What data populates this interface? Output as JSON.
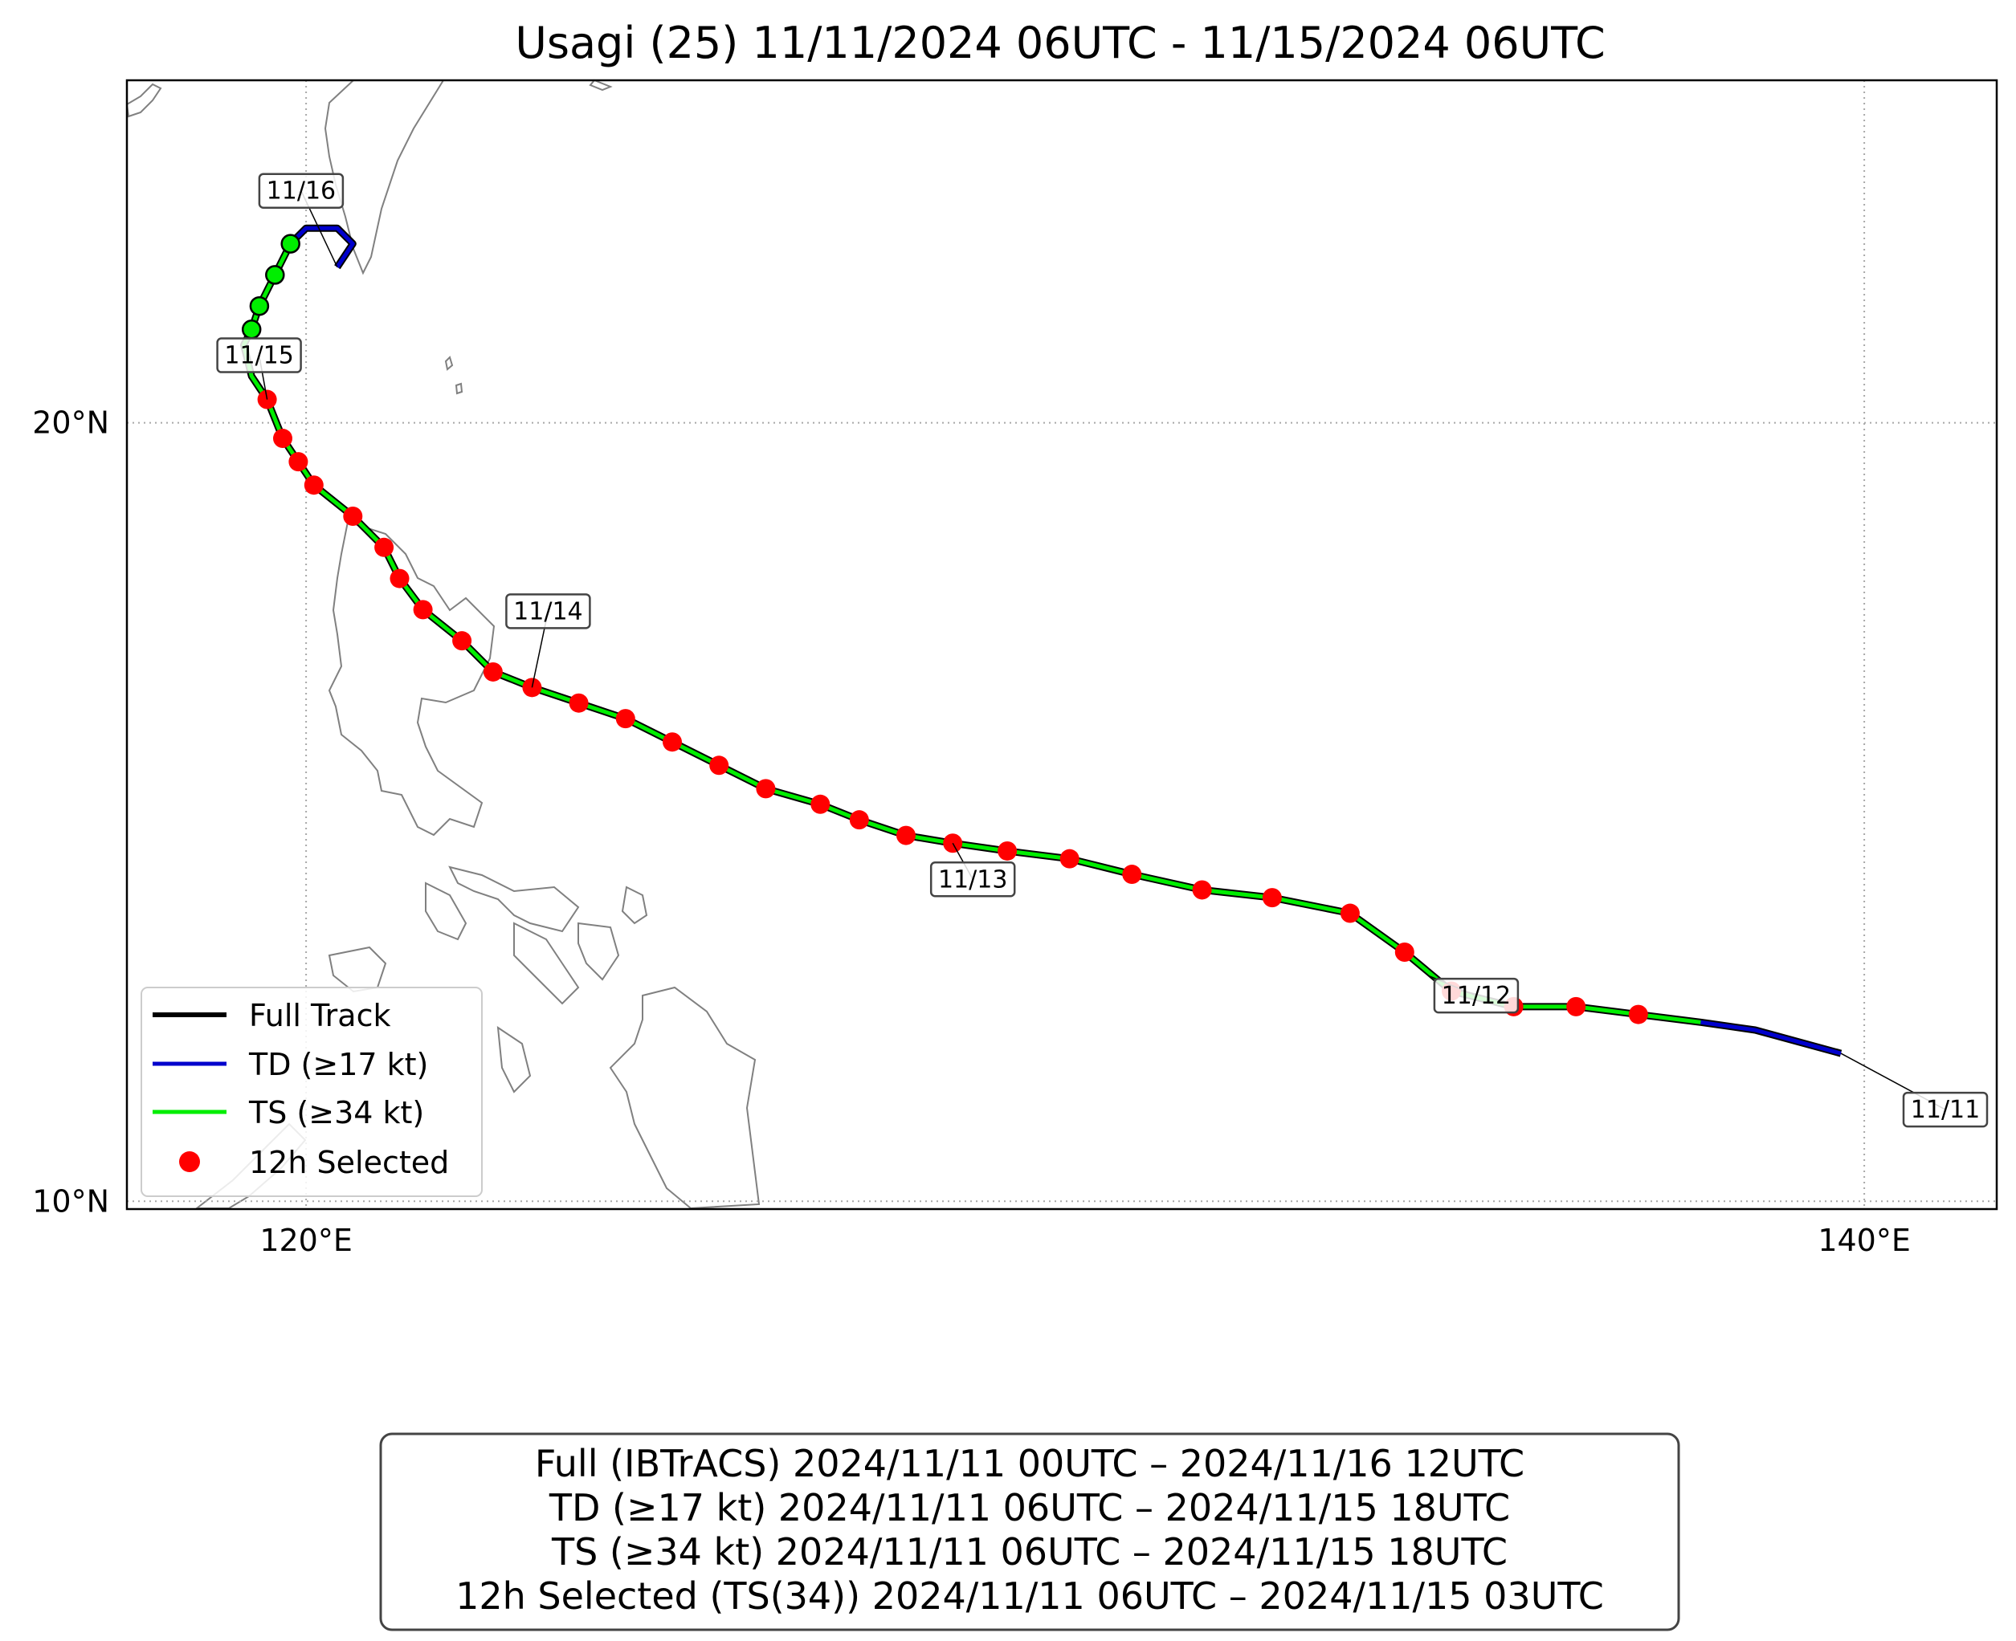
{
  "title": "Usagi (25)   11/11/2024 06UTC - 11/15/2024 06UTC",
  "axes": {
    "lon_ticks": [
      {
        "value": 120,
        "label": "120°E"
      },
      {
        "value": 140,
        "label": "140°E"
      }
    ],
    "lat_ticks": [
      {
        "value": 20,
        "label": "20°N"
      },
      {
        "value": 10,
        "label": "10°N"
      }
    ],
    "lon_range": [
      117.7,
      141.7
    ],
    "lat_range": [
      9.9,
      24.4
    ],
    "grid": "dotted"
  },
  "legend": {
    "position": "lower-left",
    "items": [
      {
        "label": "Full Track",
        "color": "#000000",
        "kind": "line"
      },
      {
        "label": "TD (≥17 kt)",
        "color": "#0000cc",
        "kind": "line"
      },
      {
        "label": "TS (≥34 kt)",
        "color": "#00ee00",
        "kind": "line"
      },
      {
        "label": "12h Selected",
        "color": "#ff0000",
        "kind": "marker"
      }
    ]
  },
  "summary": {
    "lines": [
      "Full (IBTrACS)   2024/11/11 00UTC – 2024/11/16 12UTC",
      "TD (≥17 kt)   2024/11/11 06UTC – 2024/11/15 18UTC",
      "TS (≥34 kt)   2024/11/11 06UTC – 2024/11/15 18UTC",
      "12h Selected (TS(34))   2024/11/11 06UTC – 2024/11/15 03UTC"
    ]
  },
  "colors": {
    "full": "#000000",
    "td": "#0000cc",
    "ts": "#00ee00",
    "selected": "#ff0000",
    "coast": "#808080",
    "grid": "#a8a8a8"
  },
  "chart_data": {
    "type": "line",
    "title": "Usagi (25)   11/11/2024 06UTC - 11/15/2024 06UTC",
    "xlabel": "",
    "ylabel": "",
    "xlim": [
      117.7,
      141.7
    ],
    "ylim": [
      9.9,
      24.4
    ],
    "track": [
      [
        139.7,
        11.9
      ],
      [
        138.6,
        12.2
      ],
      [
        137.9,
        12.3
      ],
      [
        137.1,
        12.4
      ],
      [
        136.3,
        12.5
      ],
      [
        135.5,
        12.5
      ],
      [
        134.7,
        12.7
      ],
      [
        134.1,
        13.2
      ],
      [
        133.4,
        13.7
      ],
      [
        132.4,
        13.9
      ],
      [
        131.5,
        14.0
      ],
      [
        130.6,
        14.2
      ],
      [
        129.8,
        14.4
      ],
      [
        129.0,
        14.5
      ],
      [
        128.3,
        14.6
      ],
      [
        127.7,
        14.7
      ],
      [
        127.1,
        14.9
      ],
      [
        126.6,
        15.1
      ],
      [
        125.9,
        15.3
      ],
      [
        125.3,
        15.6
      ],
      [
        124.7,
        15.9
      ],
      [
        124.1,
        16.2
      ],
      [
        123.5,
        16.4
      ],
      [
        122.9,
        16.6
      ],
      [
        122.4,
        16.8
      ],
      [
        122.0,
        17.2
      ],
      [
        121.5,
        17.6
      ],
      [
        121.2,
        18.0
      ],
      [
        121.0,
        18.4
      ],
      [
        120.6,
        18.8
      ],
      [
        120.1,
        19.2
      ],
      [
        119.9,
        19.5
      ],
      [
        119.7,
        19.8
      ],
      [
        119.5,
        20.3
      ],
      [
        119.3,
        20.6
      ],
      [
        119.2,
        21.0
      ],
      [
        119.3,
        21.2
      ],
      [
        119.4,
        21.5
      ],
      [
        119.6,
        21.9
      ],
      [
        119.8,
        22.3
      ],
      [
        120.0,
        22.5
      ],
      [
        120.4,
        22.5
      ],
      [
        120.6,
        22.3
      ],
      [
        120.4,
        22.0
      ]
    ],
    "td_segments": [
      [
        [
          139.7,
          11.9
        ],
        [
          138.6,
          12.2
        ],
        [
          137.9,
          12.3
        ]
      ],
      [
        [
          119.8,
          22.3
        ],
        [
          120.0,
          22.5
        ],
        [
          120.4,
          22.5
        ],
        [
          120.6,
          22.3
        ],
        [
          120.4,
          22.0
        ]
      ]
    ],
    "ts_track": [
      [
        137.9,
        12.3
      ],
      [
        137.1,
        12.4
      ],
      [
        136.3,
        12.5
      ],
      [
        135.5,
        12.5
      ],
      [
        134.7,
        12.7
      ],
      [
        134.1,
        13.2
      ],
      [
        133.4,
        13.7
      ],
      [
        132.4,
        13.9
      ],
      [
        131.5,
        14.0
      ],
      [
        130.6,
        14.2
      ],
      [
        129.8,
        14.4
      ],
      [
        129.0,
        14.5
      ],
      [
        128.3,
        14.6
      ],
      [
        127.7,
        14.7
      ],
      [
        127.1,
        14.9
      ],
      [
        126.6,
        15.1
      ],
      [
        125.9,
        15.3
      ],
      [
        125.3,
        15.6
      ],
      [
        124.7,
        15.9
      ],
      [
        124.1,
        16.2
      ],
      [
        123.5,
        16.4
      ],
      [
        122.9,
        16.6
      ],
      [
        122.4,
        16.8
      ],
      [
        122.0,
        17.2
      ],
      [
        121.5,
        17.6
      ],
      [
        121.2,
        18.0
      ],
      [
        121.0,
        18.4
      ],
      [
        120.6,
        18.8
      ],
      [
        120.1,
        19.2
      ],
      [
        119.9,
        19.5
      ],
      [
        119.7,
        19.8
      ],
      [
        119.5,
        20.3
      ],
      [
        119.3,
        20.6
      ],
      [
        119.2,
        21.0
      ],
      [
        119.3,
        21.2
      ],
      [
        119.4,
        21.5
      ],
      [
        119.6,
        21.9
      ],
      [
        119.8,
        22.3
      ]
    ],
    "selected_points": [
      [
        137.1,
        12.4
      ],
      [
        136.3,
        12.5
      ],
      [
        135.5,
        12.5
      ],
      [
        134.7,
        12.7
      ],
      [
        134.1,
        13.2
      ],
      [
        133.4,
        13.7
      ],
      [
        132.4,
        13.9
      ],
      [
        131.5,
        14.0
      ],
      [
        130.6,
        14.2
      ],
      [
        129.8,
        14.4
      ],
      [
        129.0,
        14.5
      ],
      [
        128.3,
        14.6
      ],
      [
        127.7,
        14.7
      ],
      [
        127.1,
        14.9
      ],
      [
        126.6,
        15.1
      ],
      [
        125.9,
        15.3
      ],
      [
        125.3,
        15.6
      ],
      [
        124.7,
        15.9
      ],
      [
        124.1,
        16.2
      ],
      [
        123.5,
        16.4
      ],
      [
        122.9,
        16.6
      ],
      [
        122.4,
        16.8
      ],
      [
        122.0,
        17.2
      ],
      [
        121.5,
        17.6
      ],
      [
        121.2,
        18.0
      ],
      [
        121.0,
        18.4
      ],
      [
        120.6,
        18.8
      ],
      [
        120.1,
        19.2
      ],
      [
        119.9,
        19.5
      ],
      [
        119.7,
        19.8
      ],
      [
        119.5,
        20.3
      ]
    ],
    "green_points": [
      [
        119.3,
        21.2
      ],
      [
        119.4,
        21.5
      ],
      [
        119.6,
        21.9
      ],
      [
        119.8,
        22.3
      ]
    ],
    "date_labels": [
      {
        "text": "11/11",
        "lon": 139.7,
        "lat": 11.9,
        "anchor": "lower-right"
      },
      {
        "text": "11/12",
        "lon": 134.4,
        "lat": 12.9,
        "anchor": "right"
      },
      {
        "text": "11/13",
        "lon": 128.3,
        "lat": 14.6,
        "anchor": "below"
      },
      {
        "text": "11/14",
        "lon": 122.9,
        "lat": 16.6,
        "anchor": "upper-left"
      },
      {
        "text": "11/15",
        "lon": 119.5,
        "lat": 20.3,
        "anchor": "upper-left"
      },
      {
        "text": "11/16",
        "lon": 120.4,
        "lat": 22.0,
        "anchor": "upper-left"
      }
    ]
  }
}
